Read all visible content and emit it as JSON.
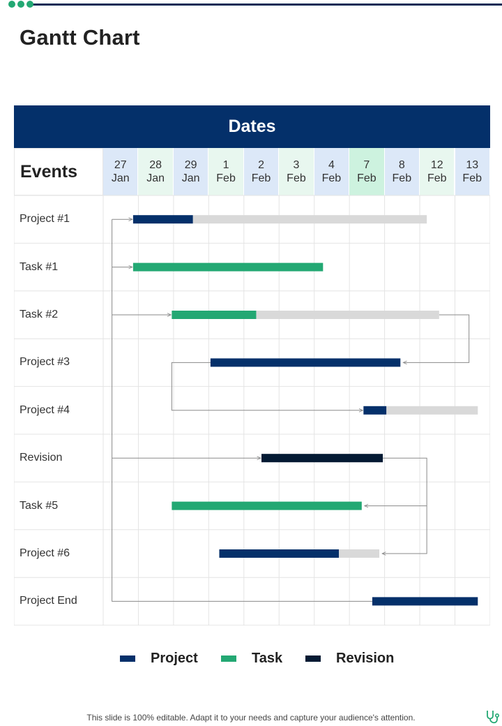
{
  "title": "Gantt Chart",
  "footer_text": "This slide is 100% editable. Adapt it to your needs and capture your audience's attention.",
  "colors": {
    "project": "#04306a",
    "task": "#23a873",
    "revision": "#041a33",
    "remaining": "#d9d9d9",
    "date_blue": "#dce8f8",
    "date_green": "#e8f7ef",
    "date_highlight": "#cdf2df",
    "connector": "#8a8a8a"
  },
  "icons": [
    "stethoscope-icon"
  ],
  "chart_data": {
    "type": "gantt",
    "header": "Dates",
    "row_header": "Events",
    "dates": [
      {
        "day": "27",
        "month": "Jan"
      },
      {
        "day": "28",
        "month": "Jan"
      },
      {
        "day": "29",
        "month": "Jan"
      },
      {
        "day": "1",
        "month": "Feb"
      },
      {
        "day": "2",
        "month": "Feb"
      },
      {
        "day": "3",
        "month": "Feb"
      },
      {
        "day": "4",
        "month": "Feb"
      },
      {
        "day": "7",
        "month": "Feb"
      },
      {
        "day": "8",
        "month": "Feb"
      },
      {
        "day": "12",
        "month": "Feb"
      },
      {
        "day": "13",
        "month": "Feb"
      }
    ],
    "highlighted_date_index": 7,
    "events": [
      {
        "label": "Project #1",
        "kind": "project",
        "start": 0.85,
        "done_end": 2.55,
        "end": 9.2
      },
      {
        "label": "Task #1",
        "kind": "task",
        "start": 0.85,
        "done_end": 6.25,
        "end": 6.25
      },
      {
        "label": "Task #2",
        "kind": "task",
        "start": 1.95,
        "done_end": 4.35,
        "end": 9.55
      },
      {
        "label": "Project #3",
        "kind": "project",
        "start": 3.05,
        "done_end": 8.45,
        "end": 8.45
      },
      {
        "label": "Project #4",
        "kind": "project",
        "start": 7.4,
        "done_end": 8.05,
        "end": 10.65
      },
      {
        "label": "Revision",
        "kind": "revision",
        "start": 4.5,
        "done_end": 7.95,
        "end": 7.95
      },
      {
        "label": "Task #5",
        "kind": "task",
        "start": 1.95,
        "done_end": 7.35,
        "end": 7.35
      },
      {
        "label": "Project #6",
        "kind": "project",
        "start": 3.3,
        "done_end": 6.7,
        "end": 7.85
      },
      {
        "label": "Project End",
        "kind": "project",
        "start": 7.65,
        "done_end": 10.65,
        "end": 10.65
      }
    ],
    "legend": [
      {
        "key": "project",
        "label": "Project"
      },
      {
        "key": "task",
        "label": "Task"
      },
      {
        "key": "revision",
        "label": "Revision"
      }
    ]
  }
}
